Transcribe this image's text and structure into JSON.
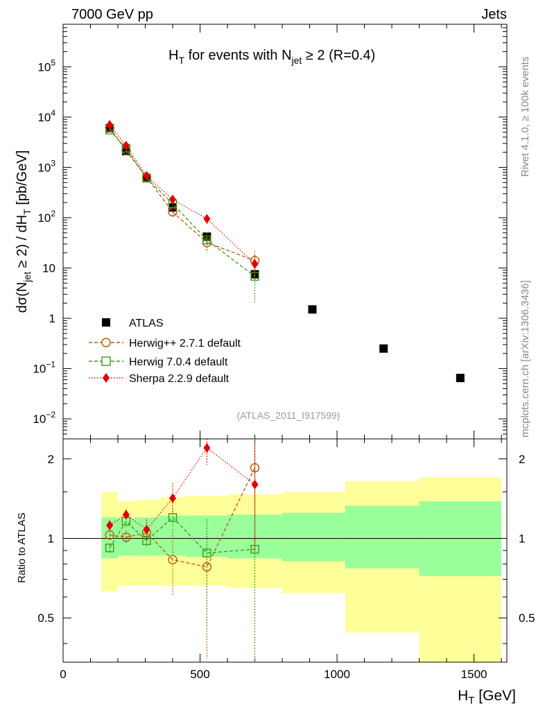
{
  "header": {
    "left": "7000 GeV pp",
    "right": "Jets"
  },
  "side_labels": {
    "rivet": "Rivet 4.1.0, ≥ 100k events",
    "mcplots": "mcplots.cern.ch [arXiv:1306.3436]"
  },
  "chart_data": [
    {
      "type": "scatter",
      "panel": "main",
      "title": "H_T for events with N_jet ≥ 2 (R=0.4)",
      "title_parts": {
        "a": "H",
        "a_sub": "T",
        "b": " for events with N",
        "b_sub": "jet",
        "c": " ≥ 2 (R=0.4)"
      },
      "xlabel": "H_T [GeV]",
      "ylabel": "dσ(N_jet ≥ 2) / dH_T [pb/GeV]",
      "ylabel_parts": {
        "p1": "dσ(N",
        "s1": "jet",
        "p2": " ≥ 2) / dH",
        "s2": "T",
        "p3": " [pb/GeV]"
      },
      "yscale": "log",
      "xlim": [
        0,
        1620
      ],
      "ylim": [
        0.004,
        700000
      ],
      "y_ticks": [
        {
          "value": 0.01,
          "base": "10",
          "exp": "−2"
        },
        {
          "value": 0.1,
          "base": "10",
          "exp": "−1"
        },
        {
          "value": 1,
          "base": "1",
          "exp": ""
        },
        {
          "value": 10,
          "base": "10",
          "exp": ""
        },
        {
          "value": 100,
          "base": "10",
          "exp": "2"
        },
        {
          "value": 1000,
          "base": "10",
          "exp": "3"
        },
        {
          "value": 10000,
          "base": "10",
          "exp": "4"
        },
        {
          "value": 100000,
          "base": "10",
          "exp": "5"
        }
      ],
      "annotation": "(ATLAS_2011_I917599)",
      "legend_position": "bottom-left",
      "series": [
        {
          "name": "ATLAS",
          "marker": "square",
          "color": "#000000",
          "x": [
            170,
            230,
            305,
            400,
            525,
            700,
            910,
            1170,
            1450
          ],
          "y": [
            6000,
            2100,
            620,
            160,
            42,
            7.5,
            1.5,
            0.25,
            0.065
          ]
        },
        {
          "name": "Herwig++ 2.7.1 default",
          "marker": "circle-open",
          "line": "dashed",
          "color": "#b35806",
          "x": [
            170,
            230,
            305,
            400,
            525,
            700
          ],
          "y": [
            6200,
            2150,
            630,
            130,
            32,
            14
          ],
          "err": [
            200,
            90,
            40,
            20,
            12,
            8
          ]
        },
        {
          "name": "Herwig 7.0.4 default",
          "marker": "square-open",
          "line": "dashed",
          "color": "#3a9a1a",
          "x": [
            170,
            230,
            305,
            400,
            525,
            700
          ],
          "y": [
            5500,
            2400,
            610,
            190,
            36,
            6.8
          ],
          "err": [
            200,
            110,
            40,
            30,
            15,
            4.8
          ]
        },
        {
          "name": "Sherpa 2.2.9 default",
          "marker": "diamond",
          "line": "dotted",
          "color": "#e00000",
          "x": [
            170,
            230,
            305,
            400,
            525,
            700
          ],
          "y": [
            7000,
            2700,
            680,
            230,
            95,
            12
          ],
          "err": [
            300,
            150,
            50,
            30,
            20,
            6
          ]
        }
      ]
    },
    {
      "type": "scatter",
      "panel": "ratio",
      "ylabel": "Ratio to ATLAS",
      "yscale": "log",
      "xlim": [
        0,
        1620
      ],
      "ylim": [
        0.34,
        2.38
      ],
      "x_ticks": [
        "0",
        "500",
        "1000",
        "1500"
      ],
      "x_tick_values": [
        0,
        500,
        1000,
        1500
      ],
      "y_ticks": [
        "0.5",
        "1",
        "2"
      ],
      "y_tick_values": [
        0.5,
        1,
        2
      ],
      "reference_line": 1,
      "bands": [
        {
          "x_lo": 140,
          "x_hi": 200,
          "green_lo": 0.84,
          "green_hi": 1.2,
          "yellow_lo": 0.63,
          "yellow_hi": 1.5
        },
        {
          "x_lo": 200,
          "x_hi": 260,
          "green_lo": 0.86,
          "green_hi": 1.19,
          "yellow_lo": 0.66,
          "yellow_hi": 1.38
        },
        {
          "x_lo": 260,
          "x_hi": 350,
          "green_lo": 0.86,
          "green_hi": 1.2,
          "yellow_lo": 0.66,
          "yellow_hi": 1.4
        },
        {
          "x_lo": 350,
          "x_hi": 450,
          "green_lo": 0.86,
          "green_hi": 1.22,
          "yellow_lo": 0.66,
          "yellow_hi": 1.43
        },
        {
          "x_lo": 450,
          "x_hi": 600,
          "green_lo": 0.85,
          "green_hi": 1.22,
          "yellow_lo": 0.66,
          "yellow_hi": 1.45
        },
        {
          "x_lo": 600,
          "x_hi": 800,
          "green_lo": 0.84,
          "green_hi": 1.23,
          "yellow_lo": 0.65,
          "yellow_hi": 1.47
        },
        {
          "x_lo": 800,
          "x_hi": 1030,
          "green_lo": 0.82,
          "green_hi": 1.25,
          "yellow_lo": 0.62,
          "yellow_hi": 1.5
        },
        {
          "x_lo": 1030,
          "x_hi": 1300,
          "green_lo": 0.77,
          "green_hi": 1.33,
          "yellow_lo": 0.44,
          "yellow_hi": 1.65
        },
        {
          "x_lo": 1300,
          "x_hi": 1600,
          "green_lo": 0.72,
          "green_hi": 1.38,
          "yellow_lo": 0.34,
          "yellow_hi": 1.7
        }
      ],
      "series": [
        {
          "name": "Herwig++ 2.7.1 default",
          "color": "#b35806",
          "x": [
            170,
            230,
            305,
            400,
            525,
            700
          ],
          "y": [
            1.03,
            1.01,
            1.05,
            0.83,
            0.78,
            1.85
          ],
          "err_lo": [
            0.05,
            0.06,
            0.08,
            0.22,
            0.43,
            1.0
          ],
          "err_hi": [
            0.05,
            0.06,
            0.08,
            0.25,
            0.4,
            1.0
          ]
        },
        {
          "name": "Herwig 7.0.4 default",
          "color": "#3a9a1a",
          "x": [
            170,
            230,
            305,
            400,
            525,
            700
          ],
          "y": [
            0.92,
            1.16,
            0.98,
            1.2,
            0.88,
            0.91
          ],
          "err_lo": [
            0.03,
            0.06,
            0.06,
            0.1,
            0.42,
            0.6
          ],
          "err_hi": [
            0.03,
            0.06,
            0.06,
            0.1,
            0.3,
            1.4
          ]
        },
        {
          "name": "Sherpa 2.2.9 default",
          "color": "#e00000",
          "x": [
            170,
            230,
            305,
            400,
            525,
            700
          ],
          "y": [
            1.12,
            1.23,
            1.08,
            1.42,
            2.2,
            1.6
          ],
          "err_lo": [
            0.05,
            0.06,
            0.1,
            0.18,
            0.3,
            0.7
          ],
          "err_hi": [
            0.05,
            0.06,
            0.1,
            0.2,
            0.3,
            0.7
          ]
        }
      ]
    }
  ]
}
